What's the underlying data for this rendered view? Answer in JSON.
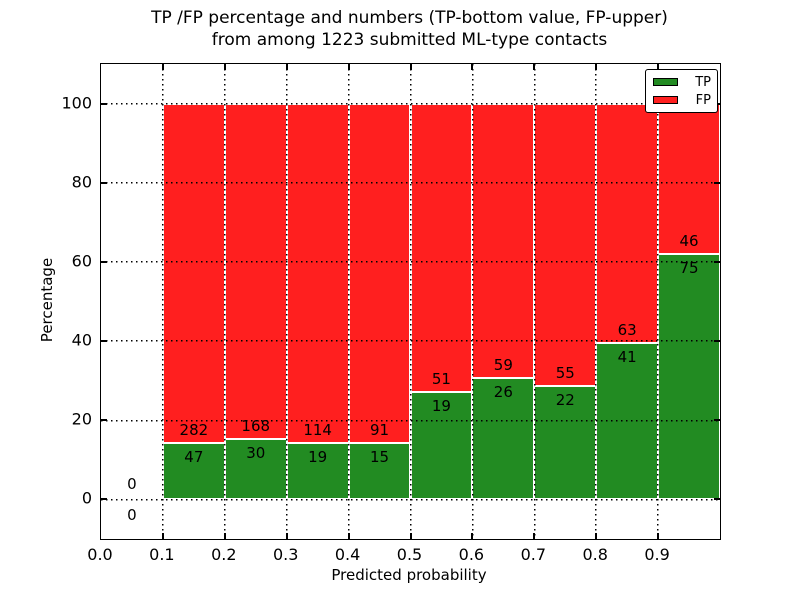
{
  "title": {
    "line1": "TP /FP percentage and numbers (TP-bottom value, FP-upper)",
    "line2": "from among 1223 submitted ML-type contacts"
  },
  "axes": {
    "ylabel": "Percentage",
    "xlabel": "Predicted probability",
    "yticks": [
      0,
      20,
      40,
      60,
      80,
      100
    ],
    "xticks": [
      "0.0",
      "0.1",
      "0.2",
      "0.3",
      "0.4",
      "0.5",
      "0.6",
      "0.7",
      "0.8",
      "0.9"
    ],
    "ylim": [
      -10,
      110
    ],
    "xlim": [
      0.0,
      1.0
    ],
    "grid": "dotted"
  },
  "legend": {
    "position": "upper-right",
    "items": [
      {
        "label": "TP",
        "color": "#228b22"
      },
      {
        "label": "FP",
        "color": "#ff1f1f"
      }
    ]
  },
  "chart_data": {
    "type": "bar",
    "stacked": true,
    "normalized_to_percent": true,
    "title": "TP /FP percentage and numbers (TP-bottom value, FP-upper) from among 1223 submitted ML-type contacts",
    "xlabel": "Predicted probability",
    "ylabel": "Percentage",
    "total_contacts": 1223,
    "bin_width": 0.1,
    "categories": [
      0.0,
      0.1,
      0.2,
      0.3,
      0.4,
      0.5,
      0.6,
      0.7,
      0.8,
      0.9
    ],
    "series": [
      {
        "name": "TP",
        "color": "#228b22",
        "counts": [
          0,
          47,
          30,
          19,
          15,
          19,
          26,
          22,
          41,
          75
        ]
      },
      {
        "name": "FP",
        "color": "#ff1f1f",
        "counts": [
          0,
          282,
          168,
          114,
          91,
          51,
          59,
          55,
          63,
          46
        ]
      }
    ],
    "tp_percent_by_bin": [
      null,
      14.29,
      15.15,
      14.29,
      14.15,
      27.14,
      30.59,
      28.57,
      39.42,
      61.98
    ],
    "ylim": [
      -10,
      110
    ],
    "xlim": [
      0.0,
      1.0
    ],
    "legend_position": "upper-right",
    "grid": "dotted"
  }
}
